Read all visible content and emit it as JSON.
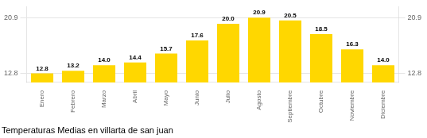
{
  "chart_data": {
    "type": "bar",
    "title": "Temperaturas Medias en villarta de san juan",
    "categories": [
      "Enero",
      "Febrero",
      "Marzo",
      "Abril",
      "Mayo",
      "Junio",
      "Julio",
      "Agosto",
      "Septiembre",
      "Octubre",
      "Noviembre",
      "Diciembre"
    ],
    "values": [
      12.8,
      13.2,
      14.0,
      14.4,
      15.7,
      17.6,
      20.0,
      20.9,
      20.5,
      18.5,
      16.3,
      14.0
    ],
    "value_labels": [
      "12.8",
      "13.2",
      "14.0",
      "14.4",
      "15.7",
      "17.6",
      "20.0",
      "20.9",
      "20.5",
      "18.5",
      "16.3",
      "14.0"
    ],
    "color": "#FFD700",
    "ylim": [
      11.5,
      22.5
    ],
    "yticks": [
      12.8,
      20.9
    ],
    "grid": true,
    "data_labels": true
  }
}
